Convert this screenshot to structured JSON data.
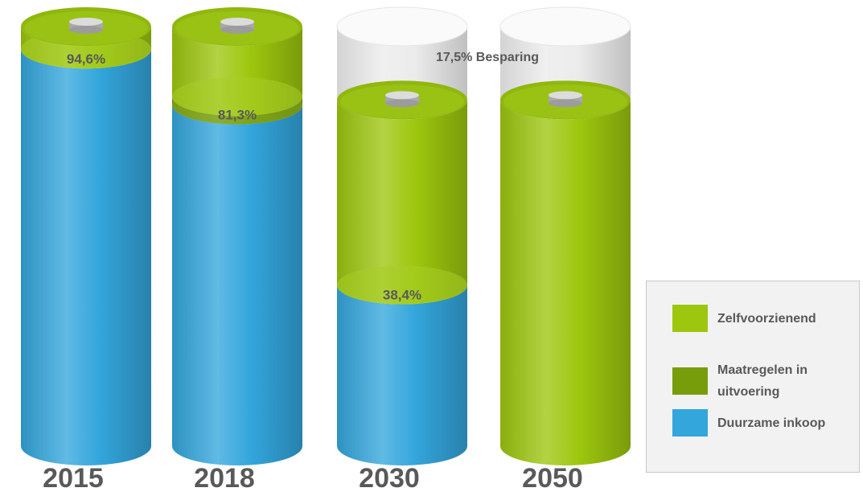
{
  "chart_data": {
    "type": "bar",
    "subtype": "stacked-3d-cylinder",
    "categories": [
      "2015",
      "2018",
      "2030",
      "2050"
    ],
    "series": [
      {
        "name": "Duurzame inkoop",
        "color": "#33a6dc",
        "values": [
          94.6,
          81.3,
          38.4,
          0
        ]
      },
      {
        "name": "Maatregelen in uitvoering",
        "color": "#779d0a",
        "values": [
          0,
          2,
          0,
          0
        ]
      },
      {
        "name": "Zelfvoorzienend",
        "color": "#9dc70e",
        "values": [
          5.4,
          16.7,
          44.1,
          82.5
        ]
      }
    ],
    "annotations": [
      {
        "category": "2030",
        "text": "17,5% Besparing",
        "value": 17.5
      }
    ],
    "data_labels": [
      {
        "category": "2015",
        "text": "94,6%",
        "value": 94.6
      },
      {
        "category": "2018",
        "text": "81,3%",
        "value": 81.3
      },
      {
        "category": "2030",
        "text": "38,4%",
        "value": 38.4
      }
    ],
    "ylim": [
      0,
      100
    ],
    "legend_position": "bottom-right",
    "grid": false
  },
  "legend": {
    "items": [
      {
        "label": "Zelfvoorzienend",
        "color": "#9dc70e"
      },
      {
        "label": "Maatregelen in uitvoering",
        "color": "#779d0a"
      },
      {
        "label": "Duurzame inkoop",
        "color": "#33a6dc"
      }
    ]
  }
}
